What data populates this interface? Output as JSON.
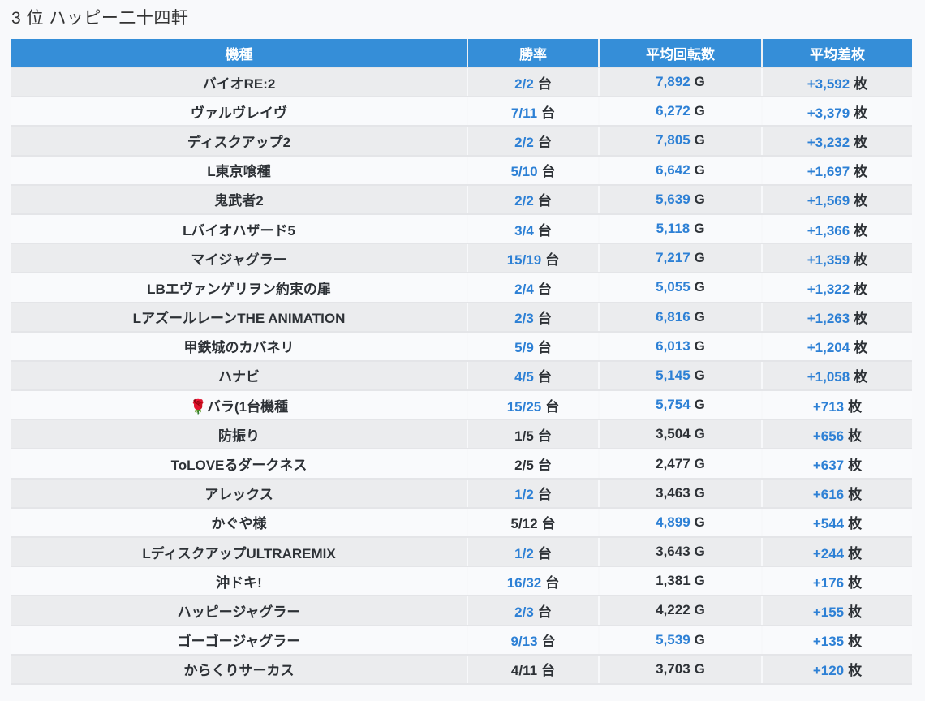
{
  "page": {
    "title": "3 位 ハッピー二十四軒"
  },
  "table": {
    "headers": [
      "機種",
      "勝率",
      "平均回転数",
      "平均差枚"
    ],
    "units": {
      "win": "台",
      "spin": "G",
      "diff": "枚"
    },
    "rows": [
      {
        "name": "バイオRE:2",
        "win": "2/2",
        "win_link": true,
        "spin": "7,892",
        "spin_link": true,
        "diff": "+3,592",
        "diff_link": true
      },
      {
        "name": "ヴァルヴレイヴ",
        "win": "7/11",
        "win_link": true,
        "spin": "6,272",
        "spin_link": true,
        "diff": "+3,379",
        "diff_link": true
      },
      {
        "name": "ディスクアップ2",
        "win": "2/2",
        "win_link": true,
        "spin": "7,805",
        "spin_link": true,
        "diff": "+3,232",
        "diff_link": true
      },
      {
        "name": "L東京喰種",
        "win": "5/10",
        "win_link": true,
        "spin": "6,642",
        "spin_link": true,
        "diff": "+1,697",
        "diff_link": true
      },
      {
        "name": "鬼武者2",
        "win": "2/2",
        "win_link": true,
        "spin": "5,639",
        "spin_link": true,
        "diff": "+1,569",
        "diff_link": true
      },
      {
        "name": "Lバイオハザード5",
        "win": "3/4",
        "win_link": true,
        "spin": "5,118",
        "spin_link": true,
        "diff": "+1,366",
        "diff_link": true
      },
      {
        "name": "マイジャグラー",
        "win": "15/19",
        "win_link": true,
        "spin": "7,217",
        "spin_link": true,
        "diff": "+1,359",
        "diff_link": true
      },
      {
        "name": "LBエヴァンゲリヲン約束の扉",
        "win": "2/4",
        "win_link": true,
        "spin": "5,055",
        "spin_link": true,
        "diff": "+1,322",
        "diff_link": true
      },
      {
        "name": "LアズールレーンTHE ANIMATION",
        "win": "2/3",
        "win_link": true,
        "spin": "6,816",
        "spin_link": true,
        "diff": "+1,263",
        "diff_link": true
      },
      {
        "name": "甲鉄城のカバネリ",
        "win": "5/9",
        "win_link": true,
        "spin": "6,013",
        "spin_link": true,
        "diff": "+1,204",
        "diff_link": true
      },
      {
        "name": "ハナビ",
        "win": "4/5",
        "win_link": true,
        "spin": "5,145",
        "spin_link": true,
        "diff": "+1,058",
        "diff_link": true
      },
      {
        "name": "🌹バラ(1台機種",
        "win": "15/25",
        "win_link": true,
        "spin": "5,754",
        "spin_link": true,
        "diff": "+713",
        "diff_link": true
      },
      {
        "name": "防振り",
        "win": "1/5",
        "win_link": false,
        "spin": "3,504",
        "spin_link": false,
        "diff": "+656",
        "diff_link": true
      },
      {
        "name": "ToLOVEるダークネス",
        "win": "2/5",
        "win_link": false,
        "spin": "2,477",
        "spin_link": false,
        "diff": "+637",
        "diff_link": true
      },
      {
        "name": "アレックス",
        "win": "1/2",
        "win_link": true,
        "spin": "3,463",
        "spin_link": false,
        "diff": "+616",
        "diff_link": true
      },
      {
        "name": "かぐや様",
        "win": "5/12",
        "win_link": false,
        "spin": "4,899",
        "spin_link": true,
        "diff": "+544",
        "diff_link": true
      },
      {
        "name": "LディスクアップULTRAREMIX",
        "win": "1/2",
        "win_link": true,
        "spin": "3,643",
        "spin_link": false,
        "diff": "+244",
        "diff_link": true
      },
      {
        "name": "沖ドキ!",
        "win": "16/32",
        "win_link": true,
        "spin": "1,381",
        "spin_link": false,
        "diff": "+176",
        "diff_link": true
      },
      {
        "name": "ハッピージャグラー",
        "win": "2/3",
        "win_link": true,
        "spin": "4,222",
        "spin_link": false,
        "diff": "+155",
        "diff_link": true
      },
      {
        "name": "ゴーゴージャグラー",
        "win": "9/13",
        "win_link": true,
        "spin": "5,539",
        "spin_link": true,
        "diff": "+135",
        "diff_link": true
      },
      {
        "name": "からくりサーカス",
        "win": "4/11",
        "win_link": false,
        "spin": "3,703",
        "spin_link": false,
        "diff": "+120",
        "diff_link": true
      }
    ]
  },
  "colors": {
    "header_bg": "#358ed8",
    "header_text": "#ffffff",
    "link_blue": "#2d80d5",
    "text_dark": "#2d3136",
    "row_stripe": "#ebecee",
    "row_white": "#f9fafc",
    "page_bg": "#f8f9fb"
  }
}
